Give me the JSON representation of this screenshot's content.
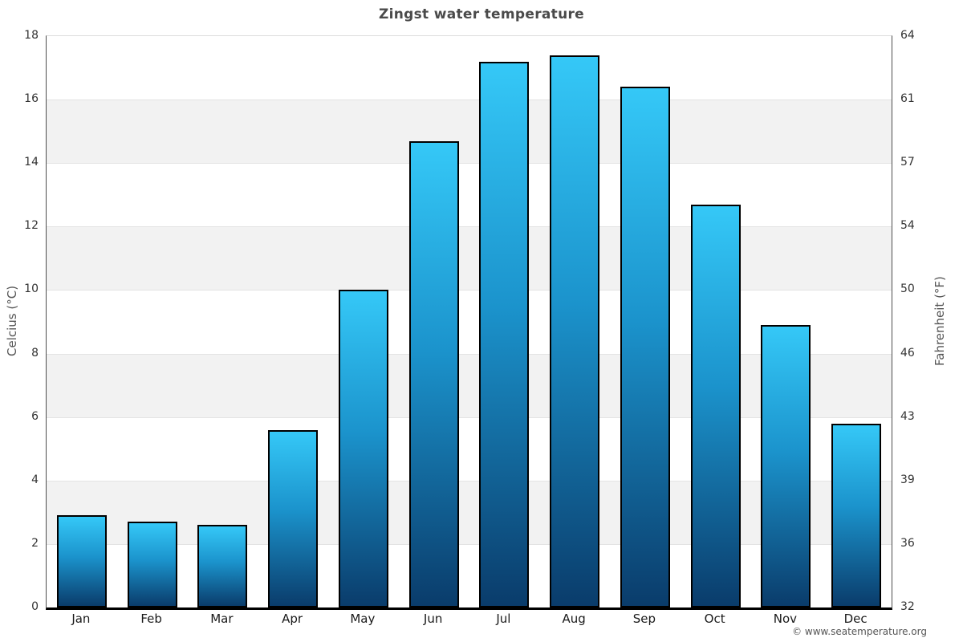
{
  "chart_data": {
    "type": "bar",
    "title": "Zingst water temperature",
    "categories": [
      "Jan",
      "Feb",
      "Mar",
      "Apr",
      "May",
      "Jun",
      "Jul",
      "Aug",
      "Sep",
      "Oct",
      "Nov",
      "Dec"
    ],
    "values": [
      2.9,
      2.7,
      2.6,
      5.6,
      10,
      14.7,
      17.2,
      17.4,
      16.4,
      12.7,
      8.9,
      5.8
    ],
    "xlabel": "",
    "ylabel_left": "Celcius (°C)",
    "ylabel_right": "Fahrenheit (°F)",
    "ylim": [
      0,
      18
    ],
    "yticks_left_celsius": [
      0,
      2,
      4,
      6,
      8,
      10,
      12,
      14,
      16,
      18
    ],
    "yticks_right_fahrenheit": [
      32,
      36,
      39,
      43,
      46,
      50,
      54,
      57,
      61,
      64
    ],
    "legend": "none",
    "grid": "horizontal gridlines every 2°C with alternating shaded bands",
    "colors": {
      "bar_gradient_top": "#35c8f7",
      "bar_gradient_mid": "#1b93cc",
      "bar_gradient_bottom": "#0a3c6b",
      "bar_border": "#000000",
      "band_shaded": "#f2f2f2",
      "gridline": "#e3e3e3",
      "axis_line": "#4d4d4d",
      "bottom_axis_line": "#000000",
      "title_text": "#4a4a4a",
      "tick_text": "#333333",
      "month_text": "#1a1a1a",
      "axis_title_text": "#555555",
      "copyright_text": "#555555"
    }
  },
  "copyright": "© www.seatemperature.org"
}
